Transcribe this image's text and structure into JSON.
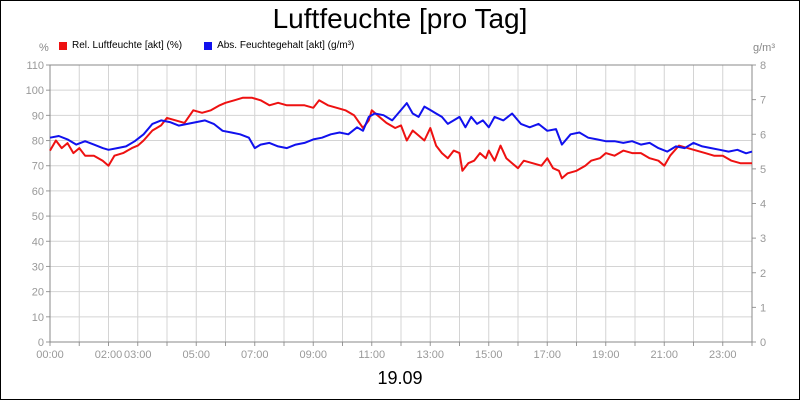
{
  "chart_data": {
    "type": "line",
    "title": "Luftfeuchte [pro Tag]",
    "date_label": "19.09",
    "y_unit_left": "%",
    "y_unit_right": "g/m³",
    "ylim_left": [
      0,
      110
    ],
    "ylim_right": [
      0,
      8
    ],
    "xlim_hours": [
      0,
      24
    ],
    "y_ticks_left": [
      0,
      10,
      20,
      30,
      40,
      50,
      60,
      70,
      80,
      90,
      100,
      110
    ],
    "y_ticks_right": [
      0,
      1,
      2,
      3,
      4,
      5,
      6,
      7,
      8
    ],
    "x_ticks": [
      {
        "hour": 0,
        "label": "00:00"
      },
      {
        "hour": 2,
        "label": "02:00"
      },
      {
        "hour": 3,
        "label": "03:00"
      },
      {
        "hour": 5,
        "label": "05:00"
      },
      {
        "hour": 7,
        "label": "07:00"
      },
      {
        "hour": 9,
        "label": "09:00"
      },
      {
        "hour": 11,
        "label": "11:00"
      },
      {
        "hour": 13,
        "label": "13:00"
      },
      {
        "hour": 15,
        "label": "15:00"
      },
      {
        "hour": 17,
        "label": "17:00"
      },
      {
        "hour": 19,
        "label": "19:00"
      },
      {
        "hour": 21,
        "label": "21:00"
      },
      {
        "hour": 23,
        "label": "23:00"
      }
    ],
    "grid": true,
    "legend_position": "top-left",
    "series": [
      {
        "name": "Rel. Luftfeuchte [akt] (%)",
        "color": "#ee1111",
        "axis": "left",
        "points": [
          [
            0,
            76
          ],
          [
            0.2,
            80
          ],
          [
            0.4,
            77
          ],
          [
            0.6,
            79
          ],
          [
            0.8,
            75
          ],
          [
            1.0,
            77
          ],
          [
            1.2,
            74
          ],
          [
            1.5,
            74
          ],
          [
            1.8,
            72
          ],
          [
            2.0,
            70
          ],
          [
            2.2,
            74
          ],
          [
            2.5,
            75
          ],
          [
            2.8,
            77
          ],
          [
            3.0,
            78
          ],
          [
            3.2,
            80
          ],
          [
            3.5,
            84
          ],
          [
            3.8,
            86
          ],
          [
            4.0,
            89
          ],
          [
            4.3,
            88
          ],
          [
            4.6,
            87
          ],
          [
            4.9,
            92
          ],
          [
            5.2,
            91
          ],
          [
            5.5,
            92
          ],
          [
            5.8,
            94
          ],
          [
            6.0,
            95
          ],
          [
            6.3,
            96
          ],
          [
            6.6,
            97
          ],
          [
            6.9,
            97
          ],
          [
            7.2,
            96
          ],
          [
            7.5,
            94
          ],
          [
            7.8,
            95
          ],
          [
            8.1,
            94
          ],
          [
            8.4,
            94
          ],
          [
            8.7,
            94
          ],
          [
            9.0,
            93
          ],
          [
            9.2,
            96
          ],
          [
            9.5,
            94
          ],
          [
            9.8,
            93
          ],
          [
            10.1,
            92
          ],
          [
            10.4,
            90
          ],
          [
            10.7,
            85
          ],
          [
            10.9,
            88
          ],
          [
            11.0,
            92
          ],
          [
            11.2,
            90
          ],
          [
            11.5,
            87
          ],
          [
            11.8,
            85
          ],
          [
            12.0,
            86
          ],
          [
            12.2,
            80
          ],
          [
            12.4,
            84
          ],
          [
            12.6,
            82
          ],
          [
            12.8,
            80
          ],
          [
            13.0,
            85
          ],
          [
            13.2,
            78
          ],
          [
            13.4,
            75
          ],
          [
            13.6,
            73
          ],
          [
            13.8,
            76
          ],
          [
            14.0,
            75
          ],
          [
            14.1,
            68
          ],
          [
            14.3,
            71
          ],
          [
            14.5,
            72
          ],
          [
            14.7,
            75
          ],
          [
            14.9,
            73
          ],
          [
            15.0,
            76
          ],
          [
            15.2,
            72
          ],
          [
            15.4,
            78
          ],
          [
            15.6,
            73
          ],
          [
            15.8,
            71
          ],
          [
            16.0,
            69
          ],
          [
            16.2,
            72
          ],
          [
            16.5,
            71
          ],
          [
            16.8,
            70
          ],
          [
            17.0,
            73
          ],
          [
            17.2,
            69
          ],
          [
            17.4,
            68
          ],
          [
            17.5,
            65
          ],
          [
            17.7,
            67
          ],
          [
            18.0,
            68
          ],
          [
            18.3,
            70
          ],
          [
            18.5,
            72
          ],
          [
            18.8,
            73
          ],
          [
            19.0,
            75
          ],
          [
            19.3,
            74
          ],
          [
            19.6,
            76
          ],
          [
            19.9,
            75
          ],
          [
            20.2,
            75
          ],
          [
            20.5,
            73
          ],
          [
            20.8,
            72
          ],
          [
            21.0,
            70
          ],
          [
            21.2,
            74
          ],
          [
            21.5,
            78
          ],
          [
            21.8,
            77
          ],
          [
            22.1,
            76
          ],
          [
            22.4,
            75
          ],
          [
            22.7,
            74
          ],
          [
            23.0,
            74
          ],
          [
            23.3,
            72
          ],
          [
            23.6,
            71
          ],
          [
            24.0,
            71
          ]
        ]
      },
      {
        "name": "Abs. Feuchtegehalt [akt] (g/m³)",
        "color": "#1111ee",
        "axis": "right",
        "points": [
          [
            0,
            5.9
          ],
          [
            0.3,
            5.95
          ],
          [
            0.6,
            5.85
          ],
          [
            0.9,
            5.7
          ],
          [
            1.2,
            5.8
          ],
          [
            1.5,
            5.7
          ],
          [
            1.8,
            5.6
          ],
          [
            2.0,
            5.55
          ],
          [
            2.3,
            5.6
          ],
          [
            2.6,
            5.65
          ],
          [
            2.9,
            5.8
          ],
          [
            3.2,
            6.0
          ],
          [
            3.5,
            6.3
          ],
          [
            3.8,
            6.4
          ],
          [
            4.1,
            6.35
          ],
          [
            4.4,
            6.25
          ],
          [
            4.7,
            6.3
          ],
          [
            5.0,
            6.35
          ],
          [
            5.3,
            6.4
          ],
          [
            5.6,
            6.3
          ],
          [
            5.9,
            6.1
          ],
          [
            6.2,
            6.05
          ],
          [
            6.5,
            6.0
          ],
          [
            6.8,
            5.9
          ],
          [
            7.0,
            5.6
          ],
          [
            7.2,
            5.7
          ],
          [
            7.5,
            5.75
          ],
          [
            7.8,
            5.65
          ],
          [
            8.1,
            5.6
          ],
          [
            8.4,
            5.7
          ],
          [
            8.7,
            5.75
          ],
          [
            9.0,
            5.85
          ],
          [
            9.3,
            5.9
          ],
          [
            9.6,
            6.0
          ],
          [
            9.9,
            6.05
          ],
          [
            10.2,
            6.0
          ],
          [
            10.5,
            6.2
          ],
          [
            10.7,
            6.1
          ],
          [
            10.9,
            6.5
          ],
          [
            11.1,
            6.6
          ],
          [
            11.4,
            6.55
          ],
          [
            11.7,
            6.4
          ],
          [
            12.0,
            6.7
          ],
          [
            12.2,
            6.9
          ],
          [
            12.4,
            6.6
          ],
          [
            12.6,
            6.5
          ],
          [
            12.8,
            6.8
          ],
          [
            13.0,
            6.7
          ],
          [
            13.2,
            6.6
          ],
          [
            13.4,
            6.5
          ],
          [
            13.6,
            6.3
          ],
          [
            13.8,
            6.4
          ],
          [
            14.0,
            6.5
          ],
          [
            14.2,
            6.2
          ],
          [
            14.4,
            6.5
          ],
          [
            14.6,
            6.3
          ],
          [
            14.8,
            6.4
          ],
          [
            15.0,
            6.2
          ],
          [
            15.2,
            6.5
          ],
          [
            15.5,
            6.4
          ],
          [
            15.8,
            6.6
          ],
          [
            16.1,
            6.3
          ],
          [
            16.4,
            6.2
          ],
          [
            16.7,
            6.3
          ],
          [
            17.0,
            6.1
          ],
          [
            17.3,
            6.15
          ],
          [
            17.5,
            5.7
          ],
          [
            17.8,
            6.0
          ],
          [
            18.1,
            6.05
          ],
          [
            18.4,
            5.9
          ],
          [
            18.7,
            5.85
          ],
          [
            19.0,
            5.8
          ],
          [
            19.3,
            5.8
          ],
          [
            19.6,
            5.75
          ],
          [
            19.9,
            5.8
          ],
          [
            20.2,
            5.7
          ],
          [
            20.5,
            5.75
          ],
          [
            20.8,
            5.6
          ],
          [
            21.1,
            5.5
          ],
          [
            21.4,
            5.65
          ],
          [
            21.7,
            5.6
          ],
          [
            22.0,
            5.75
          ],
          [
            22.3,
            5.65
          ],
          [
            22.6,
            5.6
          ],
          [
            22.9,
            5.55
          ],
          [
            23.2,
            5.5
          ],
          [
            23.5,
            5.55
          ],
          [
            23.8,
            5.45
          ],
          [
            24.0,
            5.5
          ]
        ]
      }
    ]
  }
}
